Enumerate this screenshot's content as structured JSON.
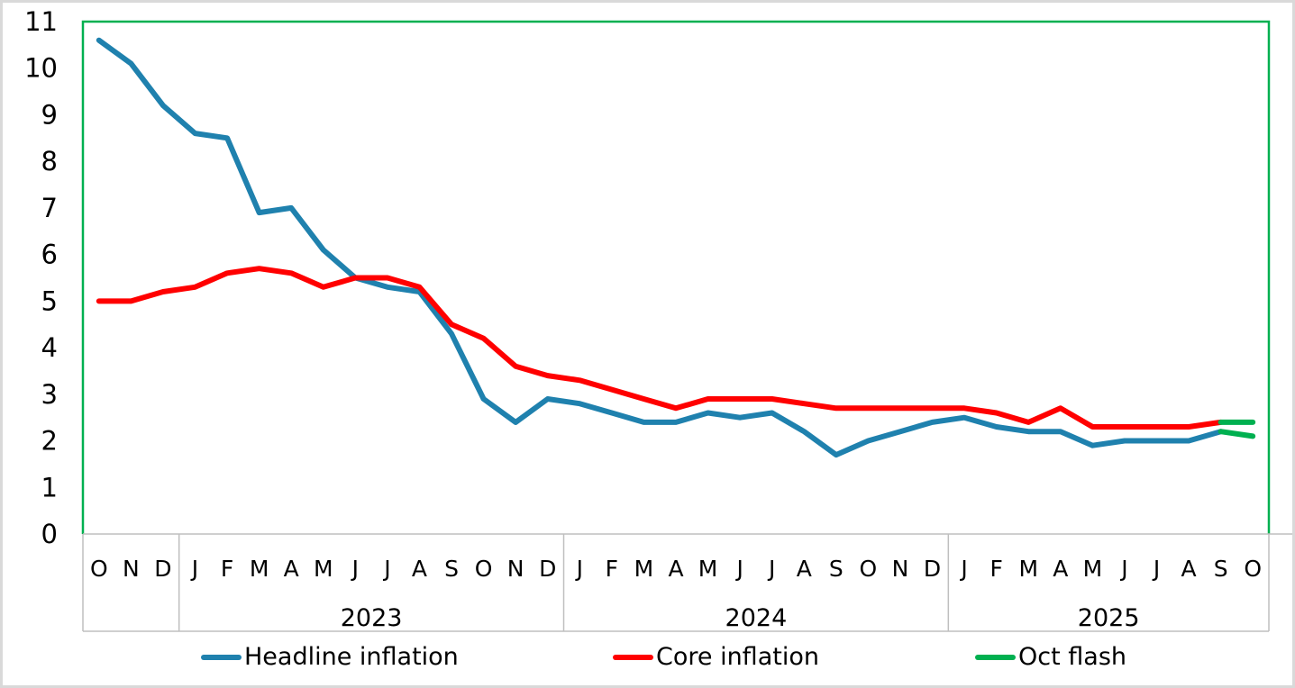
{
  "chart_data": {
    "type": "line",
    "title": "",
    "xlabel": "",
    "ylabel": "",
    "ylim": [
      0,
      11
    ],
    "yticks": [
      0,
      1,
      2,
      3,
      4,
      5,
      6,
      7,
      8,
      9,
      10,
      11
    ],
    "grid": "off",
    "legend_position": "bottom",
    "categories": [
      "O",
      "N",
      "D",
      "J",
      "F",
      "M",
      "A",
      "M",
      "J",
      "J",
      "A",
      "S",
      "O",
      "N",
      "D",
      "J",
      "F",
      "M",
      "A",
      "M",
      "J",
      "J",
      "A",
      "S",
      "O",
      "N",
      "D",
      "J",
      "F",
      "M",
      "A",
      "M",
      "J",
      "J",
      "A",
      "S",
      "O"
    ],
    "year_groups": [
      {
        "label": "",
        "start": 0,
        "count": 3
      },
      {
        "label": "2023",
        "start": 3,
        "count": 12
      },
      {
        "label": "2024",
        "start": 15,
        "count": 12
      },
      {
        "label": "2025",
        "start": 27,
        "count": 10
      }
    ],
    "series": [
      {
        "name": "Headline inflation",
        "color": "#1F81AE",
        "values": [
          10.6,
          10.1,
          9.2,
          8.6,
          8.5,
          6.9,
          7.0,
          6.1,
          5.5,
          5.3,
          5.2,
          4.3,
          2.9,
          2.4,
          2.9,
          2.8,
          2.6,
          2.4,
          2.4,
          2.6,
          2.5,
          2.6,
          2.2,
          1.7,
          2.0,
          2.2,
          2.4,
          2.5,
          2.3,
          2.2,
          2.2,
          1.9,
          2.0,
          2.0,
          2.0,
          2.2,
          null
        ]
      },
      {
        "name": "Core inflation",
        "color": "#FF0000",
        "values": [
          5.0,
          5.0,
          5.2,
          5.3,
          5.6,
          5.7,
          5.6,
          5.3,
          5.5,
          5.5,
          5.3,
          4.5,
          4.2,
          3.6,
          3.4,
          3.3,
          3.1,
          2.9,
          2.7,
          2.9,
          2.9,
          2.9,
          2.8,
          2.7,
          2.7,
          2.7,
          2.7,
          2.7,
          2.6,
          2.4,
          2.7,
          2.3,
          2.3,
          2.3,
          2.3,
          2.4,
          null
        ]
      },
      {
        "name": "Oct flash",
        "color": "#00B050",
        "segments": [
          [
            [
              35,
              2.4
            ],
            [
              36,
              2.4
            ]
          ],
          [
            [
              35,
              2.2
            ],
            [
              36,
              2.1
            ]
          ]
        ]
      }
    ],
    "colors": {
      "plot_border": "#00B050",
      "axis_line": "#BFBFBF",
      "text": "#000000",
      "background": "#FFFFFF",
      "outer_border": "#D9D9D9"
    }
  }
}
